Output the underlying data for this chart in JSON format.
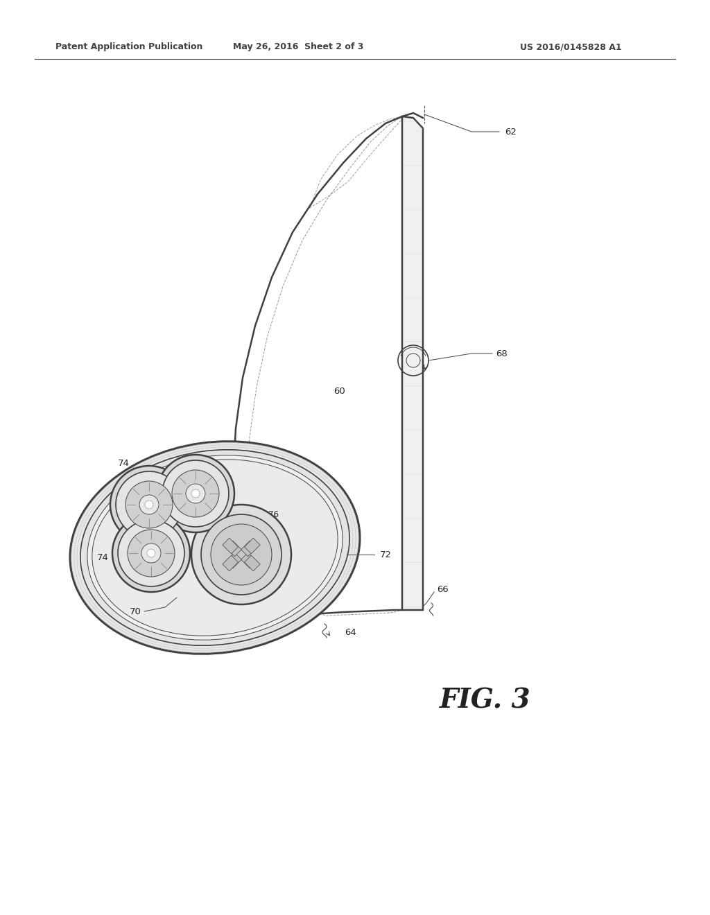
{
  "header_left": "Patent Application Publication",
  "header_mid": "May 26, 2016  Sheet 2 of 3",
  "header_right": "US 2016/0145828 A1",
  "figure_label": "FIG. 3",
  "bg_color": "#ffffff",
  "line_color": "#404040",
  "label_color": "#222222"
}
